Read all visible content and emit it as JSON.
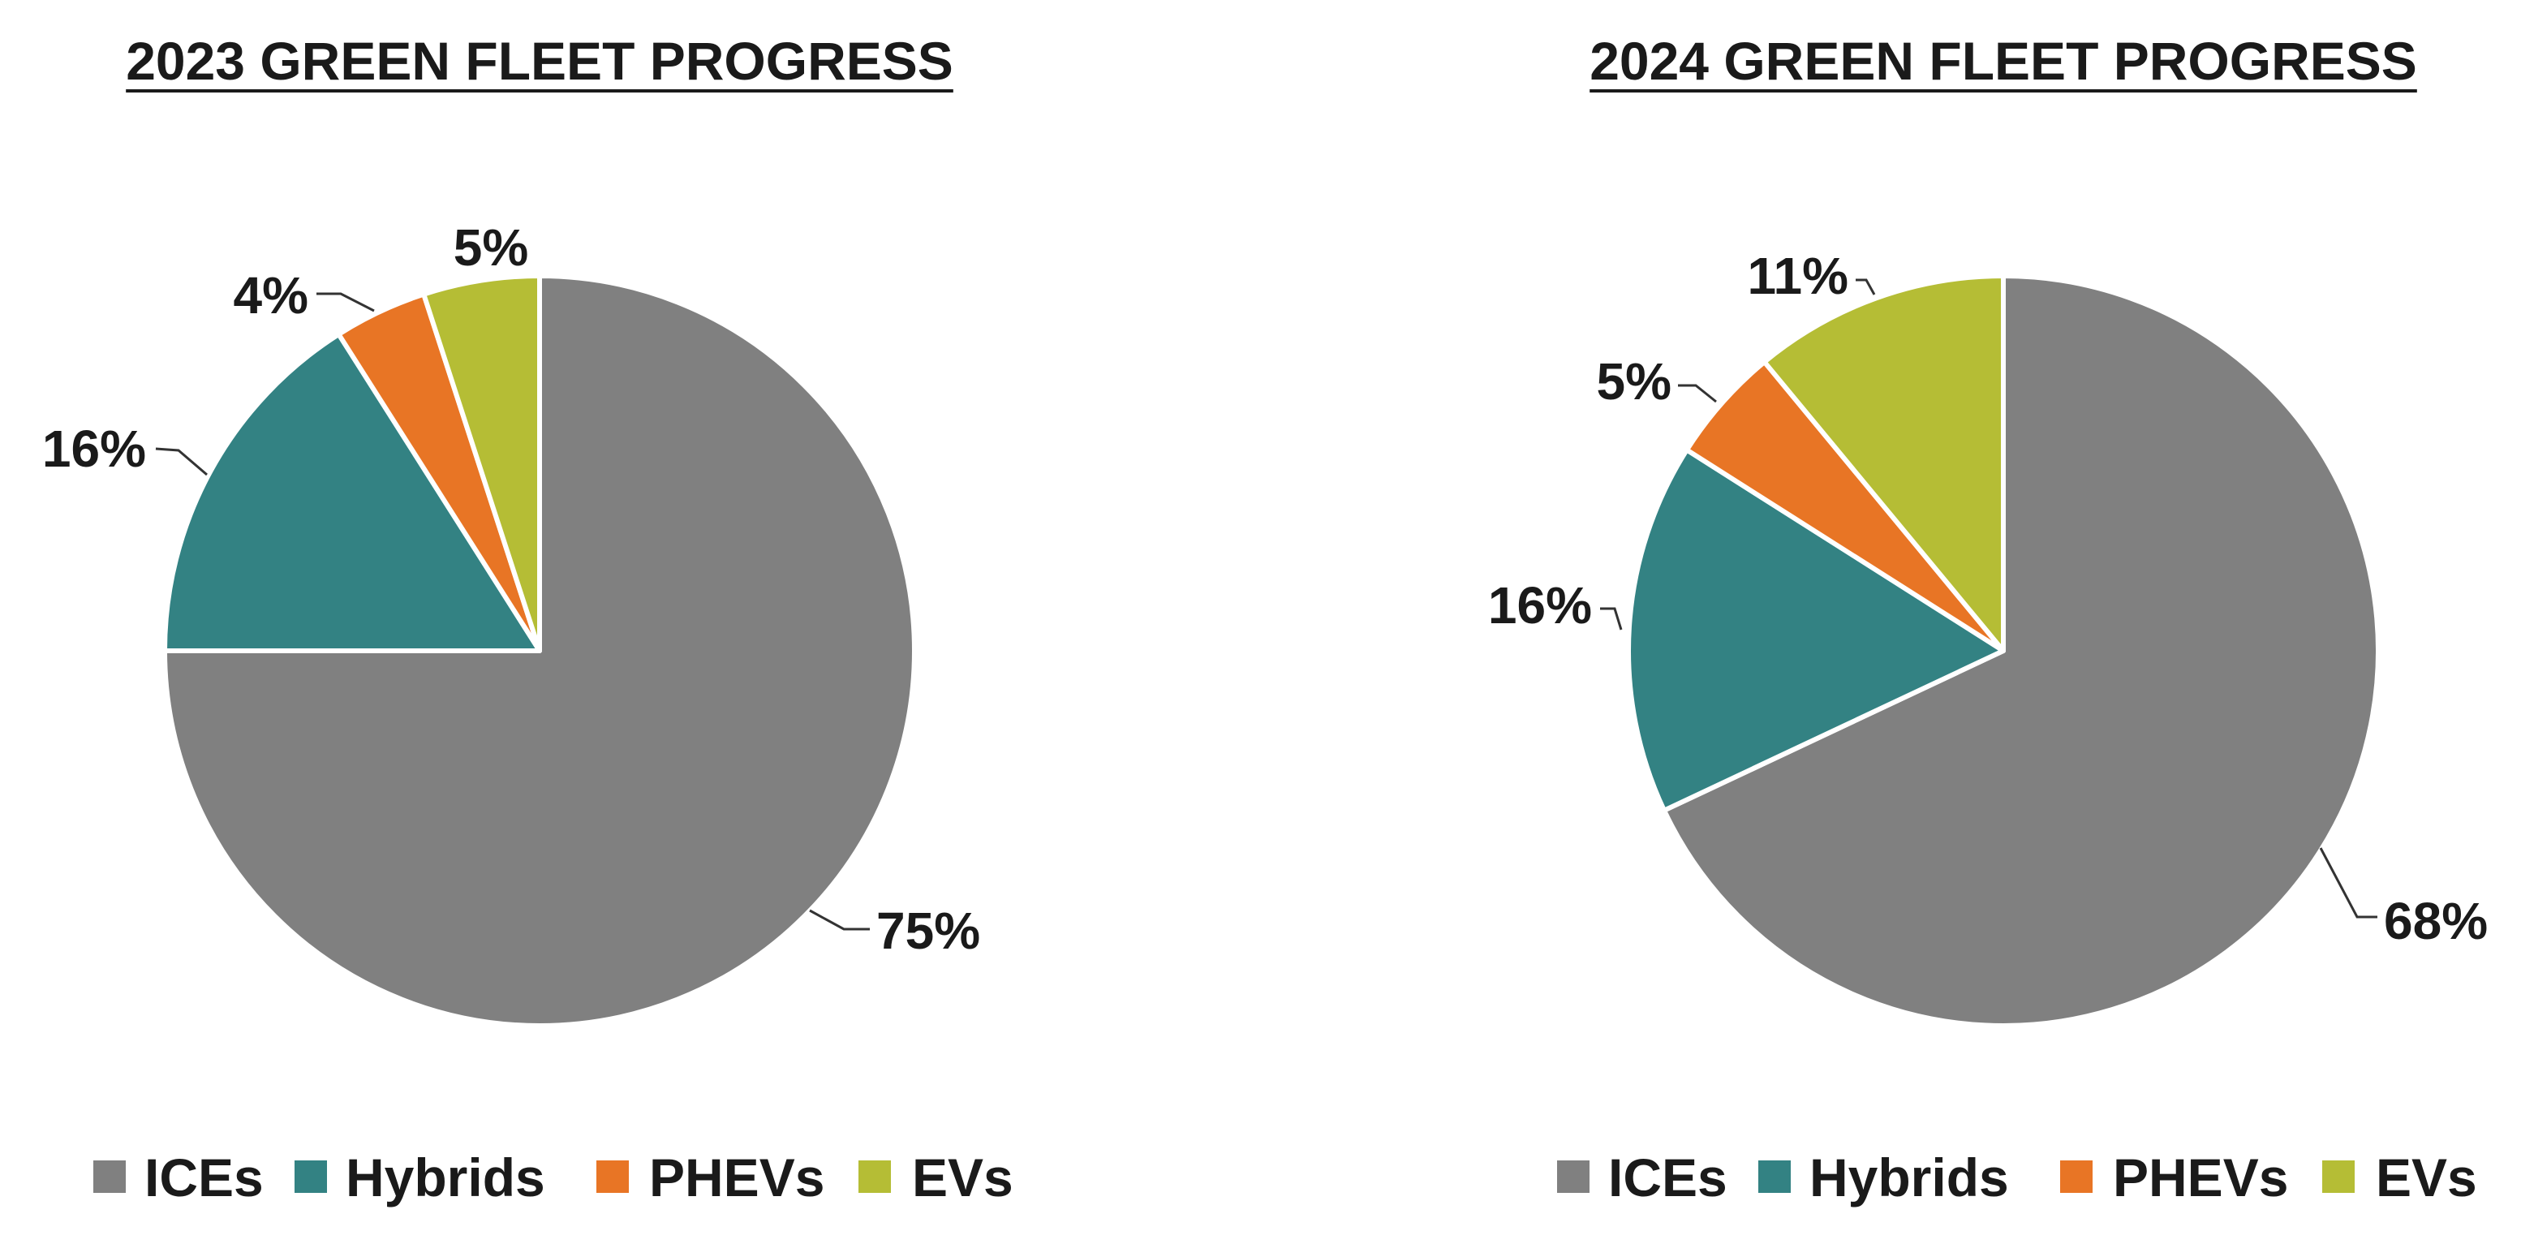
{
  "chart_data": [
    {
      "type": "pie",
      "title": "2023 GREEN FLEET PROGRESS",
      "categories": [
        "ICEs",
        "Hybrids",
        "PHEVs",
        "EVs"
      ],
      "values": [
        75,
        16,
        4,
        5
      ],
      "labels": [
        "75%",
        "16%",
        "4%",
        "5%"
      ],
      "colors": [
        "#808080",
        "#338283",
        "#e87525",
        "#b5bd35"
      ],
      "legend": "bottom",
      "start": "12 o'clock, clockwise"
    },
    {
      "type": "pie",
      "title": "2024 GREEN FLEET PROGRESS",
      "categories": [
        "ICEs",
        "Hybrids",
        "PHEVs",
        "EVs"
      ],
      "values": [
        68,
        16,
        5,
        11
      ],
      "labels": [
        "68%",
        "16%",
        "5%",
        "11%"
      ],
      "colors": [
        "#808080",
        "#338283",
        "#e87525",
        "#b5bd35"
      ],
      "legend": "bottom",
      "start": "12 o'clock, clockwise"
    }
  ]
}
